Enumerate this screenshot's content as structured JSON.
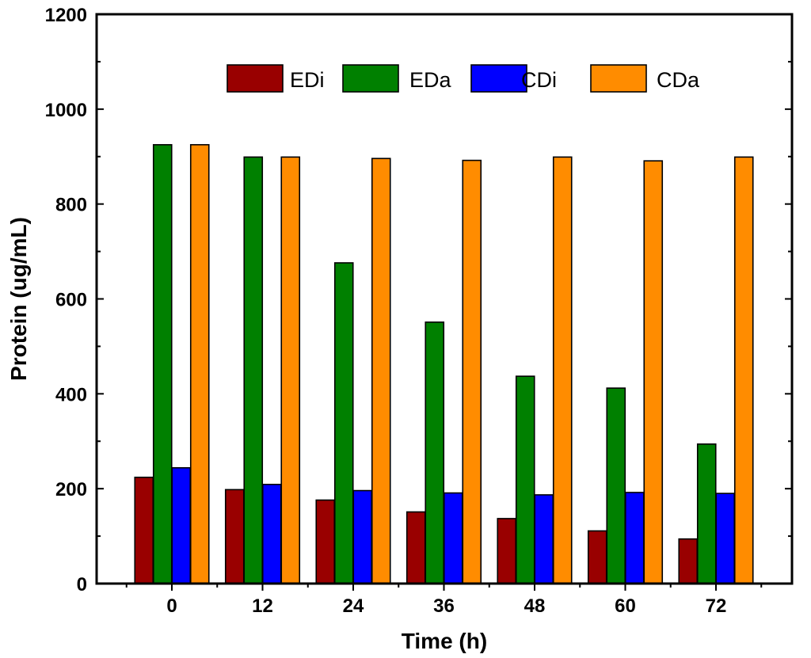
{
  "chart_data": {
    "type": "bar",
    "title": "",
    "xlabel": "Time (h)",
    "ylabel": "Protein (ug/mL)",
    "ylim": [
      0,
      1200
    ],
    "yticks": [
      0,
      200,
      400,
      600,
      800,
      1000,
      1200
    ],
    "categories": [
      "0",
      "12",
      "24",
      "36",
      "48",
      "60",
      "72"
    ],
    "legend_position": "top",
    "grid": false,
    "series": [
      {
        "name": "EDi",
        "color": "#990000",
        "values": [
          224,
          198,
          176,
          151,
          137,
          111,
          94
        ]
      },
      {
        "name": "EDa",
        "color": "#008000",
        "values": [
          925,
          899,
          676,
          551,
          437,
          412,
          294
        ]
      },
      {
        "name": "CDi",
        "color": "#0000ff",
        "values": [
          244,
          209,
          196,
          191,
          187,
          192,
          190
        ]
      },
      {
        "name": "CDa",
        "color": "#ff8c00",
        "values": [
          925,
          899,
          896,
          892,
          899,
          891,
          899
        ]
      }
    ]
  }
}
